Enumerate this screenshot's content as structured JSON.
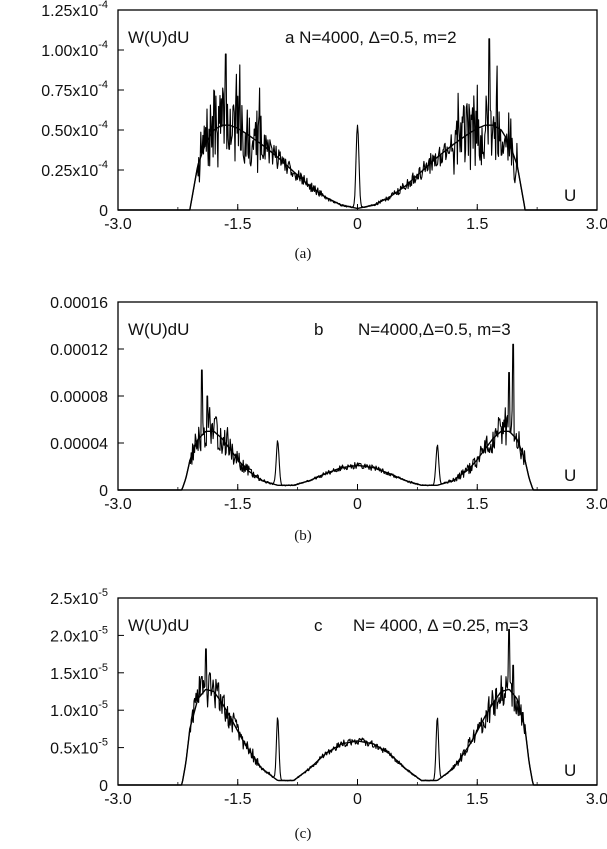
{
  "chart_data": [
    {
      "type": "line",
      "panel": "a",
      "caption": "(a)",
      "ylabel": "W(U)dU",
      "xlabel": "U",
      "annotation": "a N=4000, Δ=0.5, m=2",
      "xlim": [
        -3.0,
        3.0
      ],
      "ylim": [
        0,
        0.000125
      ],
      "x_tick_labels": [
        "-3.0",
        "-1.5",
        "0",
        "1.5",
        "3.0"
      ],
      "y_ticks": [
        {
          "value": 0,
          "mant": "0",
          "exp": ""
        },
        {
          "value": 2.5e-05,
          "mant": "0.25x10",
          "exp": "-4"
        },
        {
          "value": 5e-05,
          "mant": "0.50x10",
          "exp": "-4"
        },
        {
          "value": 7.5e-05,
          "mant": "0.75x10",
          "exp": "-4"
        },
        {
          "value": 0.0001,
          "mant": "1.00x10",
          "exp": "-4"
        },
        {
          "value": 0.000125,
          "mant": "1.25x10",
          "exp": "-4"
        }
      ],
      "band_edge": 2.0,
      "series": [
        {
          "kind": "smooth",
          "x": [
            -2.1,
            -2.0,
            -1.9,
            -1.8,
            -1.7,
            -1.6,
            -1.5,
            -1.4,
            -1.2,
            -1.0,
            -0.8,
            -0.6,
            -0.4,
            -0.2,
            0.0,
            0.2,
            0.4,
            0.6,
            0.8,
            1.0,
            1.2,
            1.4,
            1.5,
            1.6,
            1.7,
            1.8,
            1.9,
            2.0,
            2.1
          ],
          "y": [
            0,
            2.8e-05,
            4.2e-05,
            5e-05,
            5.3e-05,
            5.3e-05,
            5.1e-05,
            4.8e-05,
            4.1e-05,
            3.3e-05,
            2.4e-05,
            1.5e-05,
            8e-06,
            3e-06,
            1e-06,
            3e-06,
            8e-06,
            1.5e-05,
            2.4e-05,
            3.3e-05,
            4.1e-05,
            4.8e-05,
            5.1e-05,
            5.3e-05,
            5.3e-05,
            5e-05,
            4.2e-05,
            2.8e-05,
            0
          ]
        },
        {
          "kind": "noisy",
          "noise": 0.3,
          "seed": 7,
          "peaks": [
            {
              "x": 0.0,
              "h": 5.2e-05,
              "w": 0.025
            }
          ],
          "spikes": [
            {
              "x": -1.65,
              "h": 9.75e-05
            },
            {
              "x": -1.8,
              "h": 7.5e-05
            },
            {
              "x": 1.65,
              "h": 0.000107
            },
            {
              "x": 1.75,
              "h": 9e-05
            },
            {
              "x": 1.5,
              "h": 7.8e-05
            }
          ]
        }
      ]
    },
    {
      "type": "line",
      "panel": "b",
      "caption": "(b)",
      "ylabel": "W(U)dU",
      "xlabel": "U",
      "annotation_letter": "b",
      "annotation": "N=4000,Δ=0.5, m=3",
      "xlim": [
        -3.0,
        3.0
      ],
      "ylim": [
        0,
        0.00016
      ],
      "x_tick_labels": [
        "-3.0",
        "-1.5",
        "0",
        "1.5",
        "3.0"
      ],
      "y_ticks": [
        {
          "value": 0,
          "mant": "0",
          "exp": ""
        },
        {
          "value": 4e-05,
          "mant": "0.00004",
          "exp": ""
        },
        {
          "value": 8e-05,
          "mant": "0.00008",
          "exp": ""
        },
        {
          "value": 0.00012,
          "mant": "0.00012",
          "exp": ""
        },
        {
          "value": 0.00016,
          "mant": "0.00016",
          "exp": ""
        }
      ],
      "band_edge": 2.1,
      "series": [
        {
          "kind": "smooth",
          "x": [
            -2.2,
            -2.15,
            -2.1,
            -2.0,
            -1.9,
            -1.8,
            -1.7,
            -1.6,
            -1.5,
            -1.4,
            -1.2,
            -1.0,
            -0.8,
            -0.6,
            -0.4,
            -0.2,
            0.0,
            0.2,
            0.4,
            0.6,
            0.8,
            1.0,
            1.2,
            1.4,
            1.5,
            1.6,
            1.7,
            1.8,
            1.9,
            2.0,
            2.1,
            2.15,
            2.2
          ],
          "y": [
            0,
            1e-05,
            2.5e-05,
            4.3e-05,
            5e-05,
            5e-05,
            4.4e-05,
            3.5e-05,
            2.6e-05,
            1.8e-05,
            8e-06,
            4e-06,
            4e-06,
            8e-06,
            1.4e-05,
            1.9e-05,
            2.1e-05,
            1.9e-05,
            1.4e-05,
            8e-06,
            4e-06,
            4e-06,
            8e-06,
            1.8e-05,
            2.6e-05,
            3.5e-05,
            4.4e-05,
            5e-05,
            5e-05,
            4.3e-05,
            2.5e-05,
            1e-05,
            0
          ]
        },
        {
          "kind": "noisy",
          "noise": 0.18,
          "seed": 13,
          "peaks": [
            {
              "x": -1.0,
              "h": 3.8e-05,
              "w": 0.025
            },
            {
              "x": 1.0,
              "h": 3.4e-05,
              "w": 0.025
            }
          ],
          "spikes": [
            {
              "x": -1.95,
              "h": 0.000102
            },
            {
              "x": -1.88,
              "h": 8e-05
            },
            {
              "x": 1.95,
              "h": 0.000124
            },
            {
              "x": 1.9,
              "h": 0.0001
            },
            {
              "x": 1.85,
              "h": 7e-05
            }
          ]
        }
      ]
    },
    {
      "type": "line",
      "panel": "c",
      "caption": "(c)",
      "ylabel": "W(U)dU",
      "xlabel": "U",
      "annotation_letter": "c",
      "annotation": "N= 4000, Δ =0.25, m=3",
      "xlim": [
        -3.0,
        3.0
      ],
      "ylim": [
        0,
        2.5e-05
      ],
      "x_tick_labels": [
        "-3.0",
        "-1.5",
        "0",
        "1.5",
        "3.0"
      ],
      "y_ticks": [
        {
          "value": 0,
          "mant": "0",
          "exp": ""
        },
        {
          "value": 5e-06,
          "mant": "0.5x10",
          "exp": "-5"
        },
        {
          "value": 1e-05,
          "mant": "1.0x10",
          "exp": "-5"
        },
        {
          "value": 1.5e-05,
          "mant": "1.5x10",
          "exp": "-5"
        },
        {
          "value": 2e-05,
          "mant": "2.0x10",
          "exp": "-5"
        },
        {
          "value": 2.5e-05,
          "mant": "2.5x10",
          "exp": "-5"
        }
      ],
      "band_edge": 2.1,
      "series": [
        {
          "kind": "smooth",
          "x": [
            -2.2,
            -2.15,
            -2.1,
            -2.0,
            -1.9,
            -1.8,
            -1.7,
            -1.6,
            -1.5,
            -1.4,
            -1.2,
            -1.0,
            -0.8,
            -0.6,
            -0.4,
            -0.2,
            0.0,
            0.2,
            0.4,
            0.6,
            0.8,
            1.0,
            1.2,
            1.4,
            1.5,
            1.6,
            1.7,
            1.8,
            1.9,
            2.0,
            2.1,
            2.15,
            2.2
          ],
          "y": [
            0,
            3e-06,
            7.5e-06,
            1.15e-05,
            1.28e-05,
            1.25e-05,
            1.1e-05,
            9.2e-06,
            7.2e-06,
            5.3e-06,
            2.2e-06,
            6e-07,
            6e-07,
            2.2e-06,
            4.2e-06,
            5.5e-06,
            5.9e-06,
            5.5e-06,
            4.2e-06,
            2.2e-06,
            6e-07,
            6e-07,
            2.2e-06,
            5.3e-06,
            7.2e-06,
            9.2e-06,
            1.1e-05,
            1.25e-05,
            1.28e-05,
            1.15e-05,
            7.5e-06,
            3e-06,
            0
          ]
        },
        {
          "kind": "noisy",
          "noise": 0.12,
          "seed": 29,
          "peaks": [
            {
              "x": -1.0,
              "h": 8.5e-06,
              "w": 0.022
            },
            {
              "x": 1.0,
              "h": 8.5e-06,
              "w": 0.022
            }
          ],
          "spikes": [
            {
              "x": -1.9,
              "h": 1.82e-05
            },
            {
              "x": 1.9,
              "h": 2.08e-05
            },
            {
              "x": -1.95,
              "h": 1.45e-05
            },
            {
              "x": 1.95,
              "h": 1.6e-05
            }
          ]
        }
      ]
    }
  ]
}
